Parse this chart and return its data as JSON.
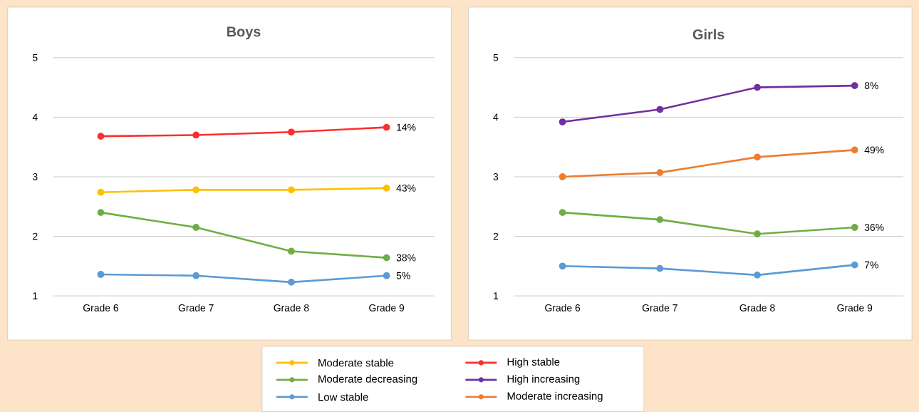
{
  "chart_data": [
    {
      "type": "line",
      "title": "Boys",
      "categories": [
        "Grade 6",
        "Grade 7",
        "Grade 8",
        "Grade 9"
      ],
      "ylim": [
        1,
        5
      ],
      "yticks": [
        1,
        2,
        3,
        4,
        5
      ],
      "grid": "y",
      "legend": "bottom",
      "marker": "circle",
      "line_style": "solid",
      "annotations": [
        {
          "text": "43%",
          "x": "Grade 9",
          "y": 2.81
        },
        {
          "text": "38%",
          "x": "Grade 9",
          "y": 1.64
        },
        {
          "text": "5%",
          "x": "Grade 9",
          "y": 1.34
        },
        {
          "text": "14%",
          "x": "Grade 9",
          "y": 3.83
        }
      ],
      "series": [
        {
          "name": "Moderate stable",
          "color": "#ffc000",
          "values": [
            2.74,
            2.78,
            2.78,
            2.81
          ]
        },
        {
          "name": "Moderate decreasing",
          "color": "#70ad47",
          "values": [
            2.4,
            2.15,
            1.75,
            1.64
          ]
        },
        {
          "name": "Low stable",
          "color": "#5b9bd5",
          "values": [
            1.36,
            1.34,
            1.23,
            1.34
          ]
        },
        {
          "name": "High stable",
          "color": "#ff2d2d",
          "values": [
            3.68,
            3.7,
            3.75,
            3.83
          ]
        }
      ]
    },
    {
      "type": "line",
      "title": "Girls",
      "categories": [
        "Grade 6",
        "Grade 7",
        "Grade 8",
        "Grade 9"
      ],
      "ylim": [
        1,
        5
      ],
      "yticks": [
        1,
        2,
        3,
        4,
        5
      ],
      "grid": "y",
      "legend": "bottom",
      "marker": "circle",
      "line_style": "solid",
      "annotations": [
        {
          "text": "8%",
          "x": "Grade 9",
          "y": 4.53
        },
        {
          "text": "49%",
          "x": "Grade 9",
          "y": 3.45
        },
        {
          "text": "36%",
          "x": "Grade 9",
          "y": 2.15
        },
        {
          "text": "7%",
          "x": "Grade 9",
          "y": 1.52
        }
      ],
      "series": [
        {
          "name": "High increasing",
          "color": "#7030a0",
          "values": [
            3.92,
            4.13,
            4.5,
            4.53
          ]
        },
        {
          "name": "Moderate increasing",
          "color": "#ed7d31",
          "values": [
            3.0,
            3.07,
            3.33,
            3.45
          ]
        },
        {
          "name": "Moderate decreasing",
          "color": "#70ad47",
          "values": [
            2.4,
            2.28,
            2.04,
            2.15
          ]
        },
        {
          "name": "Low stable",
          "color": "#5b9bd5",
          "values": [
            1.5,
            1.46,
            1.35,
            1.52
          ]
        }
      ]
    }
  ]
}
